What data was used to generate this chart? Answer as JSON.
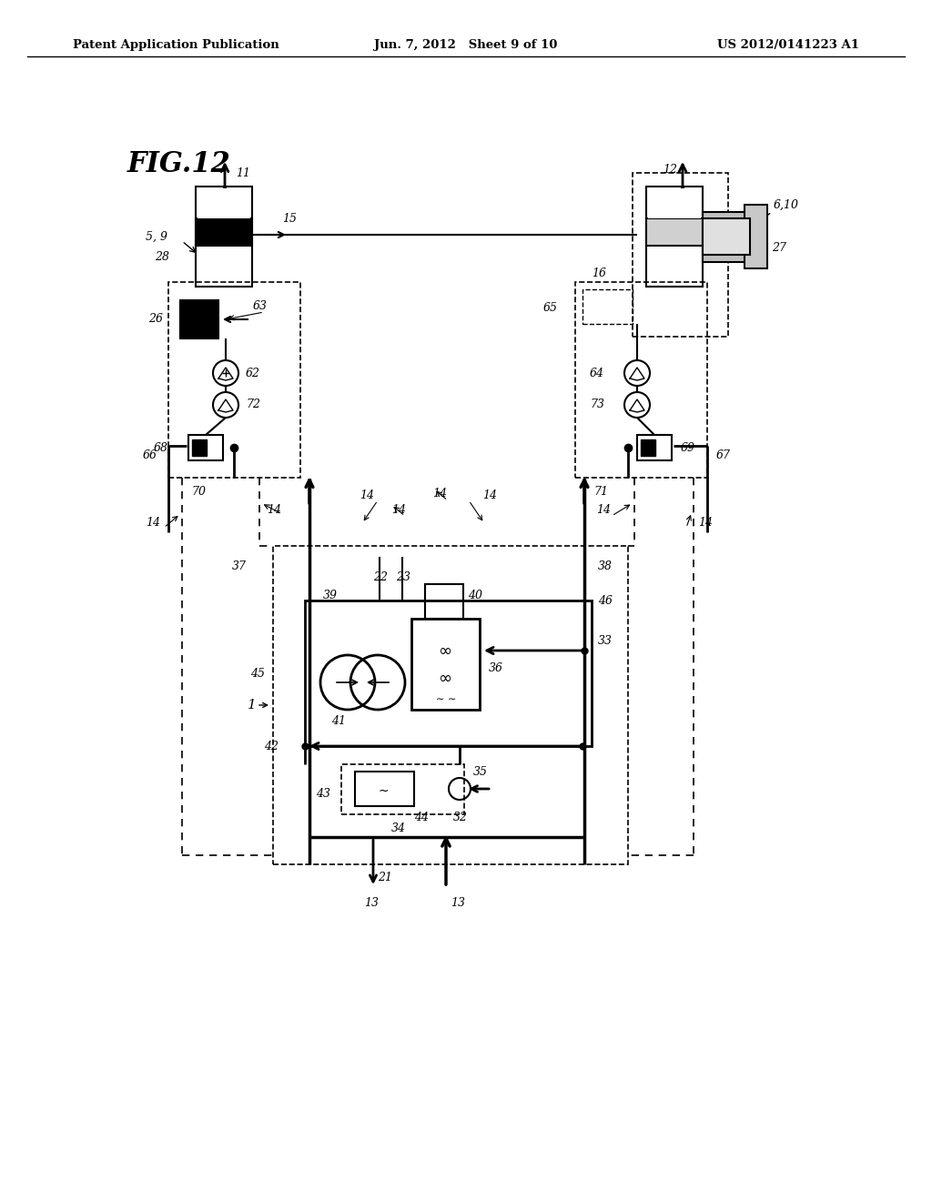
{
  "header_left": "Patent Application Publication",
  "header_center": "Jun. 7, 2012   Sheet 9 of 10",
  "header_right": "US 2012/0141223 A1",
  "fig_label": "FIG.12",
  "bg_color": "#ffffff"
}
